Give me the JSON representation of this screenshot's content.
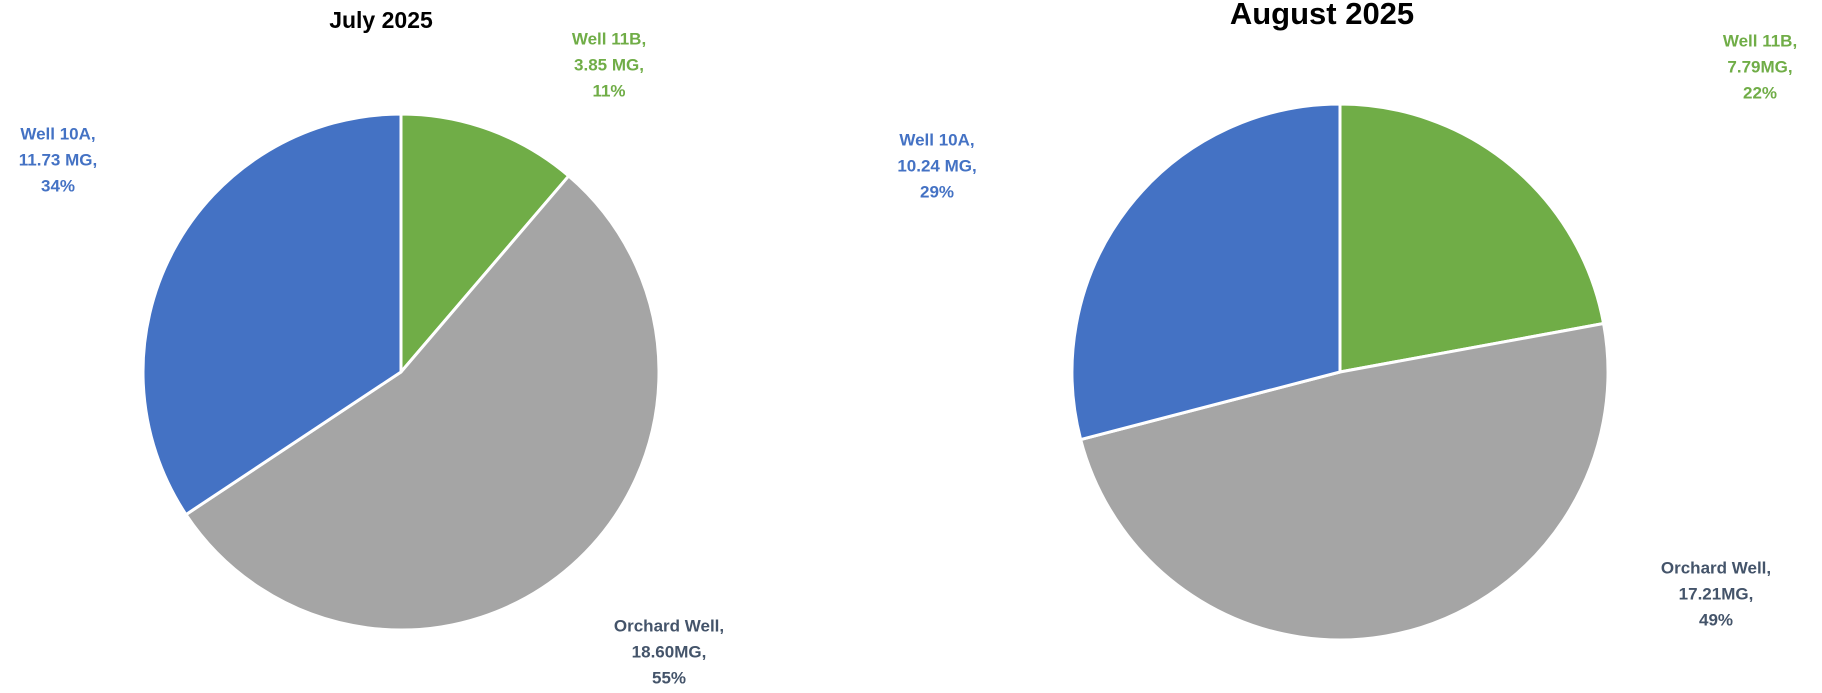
{
  "chart_data": [
    {
      "type": "pie",
      "title": "July 2025",
      "categories": [
        "Well 11B,",
        "Orchard Well,",
        "Well 10A,"
      ],
      "values": [
        3.85,
        18.6,
        11.73
      ],
      "value_labels": [
        "3.85 MG,",
        "18.60MG,",
        "11.73 MG,"
      ],
      "percent_labels": [
        "11%",
        "55%",
        "34%"
      ],
      "colors": [
        "#70ad47",
        "#a5a5a5",
        "#4472c4"
      ],
      "label_colors": [
        "#70ad47",
        "#44546a",
        "#4472c4"
      ]
    },
    {
      "type": "pie",
      "title": "August 2025",
      "categories": [
        "Well 11B,",
        "Orchard Well,",
        "Well 10A,"
      ],
      "values": [
        7.79,
        17.21,
        10.24
      ],
      "value_labels": [
        "7.79MG,",
        "17.21MG,",
        "10.24 MG,"
      ],
      "percent_labels": [
        "22%",
        "49%",
        "29%"
      ],
      "colors": [
        "#70ad47",
        "#a5a5a5",
        "#4472c4"
      ],
      "label_colors": [
        "#70ad47",
        "#44546a",
        "#4472c4"
      ]
    }
  ]
}
